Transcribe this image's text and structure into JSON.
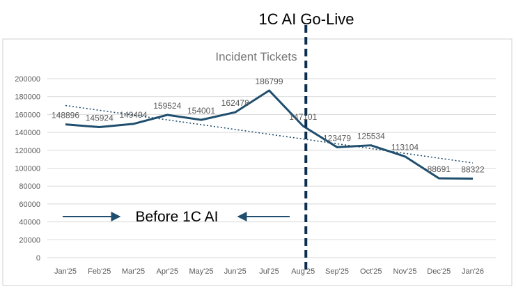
{
  "annotations": {
    "golive_label": "1C AI Go-Live",
    "before_label": "Before 1C AI",
    "golive_at": "Aug'25"
  },
  "colors": {
    "series": "#1f4e6e",
    "trend": "#1f4e6e",
    "marker": "#0d2f4f",
    "grid": "#d9d9d9"
  },
  "chart_data": {
    "type": "line",
    "title": "Incident Tickets",
    "xlabel": "",
    "ylabel": "",
    "categories": [
      "Jan'25",
      "Feb'25",
      "Mar'25",
      "Apr'25",
      "May'25",
      "Jun'25",
      "Jul'25",
      "Aug'25",
      "Sep'25",
      "Oct'25",
      "Nov'25",
      "Dec'25",
      "Jan'26"
    ],
    "series": [
      {
        "values": [
          148896,
          145924,
          149494,
          159524,
          154001,
          162478,
          186799,
          147101,
          123479,
          125534,
          113104,
          88691,
          88322
        ],
        "labels": [
          "148896",
          "145924",
          "149494",
          "159524",
          "154001",
          "162478",
          "186799",
          "147101",
          "123479",
          "125534",
          "113104",
          "88691",
          "88322"
        ]
      }
    ],
    "trendline": {
      "type": "linear",
      "style": "dotted"
    },
    "ylim": [
      0,
      200000
    ],
    "yticks": [
      0,
      20000,
      40000,
      60000,
      80000,
      100000,
      120000,
      140000,
      160000,
      180000,
      200000
    ],
    "ytick_labels": [
      "0",
      "20000",
      "40000",
      "60000",
      "80000",
      "100000",
      "120000",
      "140000",
      "160000",
      "180000",
      "200000"
    ],
    "grid": true,
    "legend": "none"
  }
}
